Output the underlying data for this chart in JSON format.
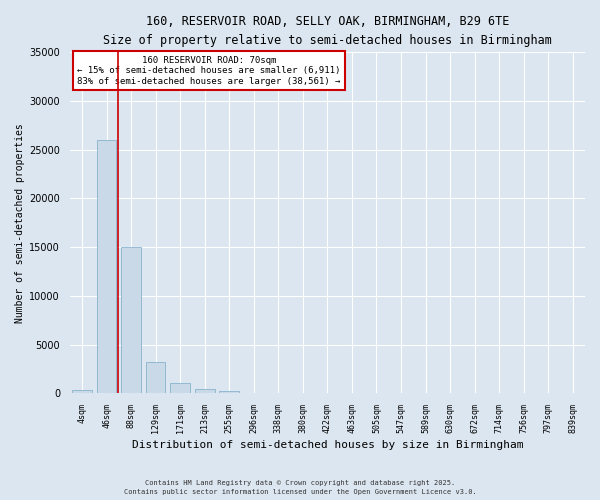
{
  "title1": "160, RESERVOIR ROAD, SELLY OAK, BIRMINGHAM, B29 6TE",
  "title2": "Size of property relative to semi-detached houses in Birmingham",
  "xlabel": "Distribution of semi-detached houses by size in Birmingham",
  "ylabel": "Number of semi-detached properties",
  "annotation_title": "160 RESERVOIR ROAD: 70sqm",
  "annotation_line1": "← 15% of semi-detached houses are smaller (6,911)",
  "annotation_line2": "83% of semi-detached houses are larger (38,561) →",
  "footnote1": "Contains HM Land Registry data © Crown copyright and database right 2025.",
  "footnote2": "Contains public sector information licensed under the Open Government Licence v3.0.",
  "bar_labels": [
    "4sqm",
    "46sqm",
    "88sqm",
    "129sqm",
    "171sqm",
    "213sqm",
    "255sqm",
    "296sqm",
    "338sqm",
    "380sqm",
    "422sqm",
    "463sqm",
    "505sqm",
    "547sqm",
    "589sqm",
    "630sqm",
    "672sqm",
    "714sqm",
    "756sqm",
    "797sqm",
    "839sqm"
  ],
  "bar_values": [
    350,
    26000,
    15000,
    3200,
    1100,
    450,
    200,
    50,
    0,
    0,
    0,
    0,
    0,
    0,
    0,
    0,
    0,
    0,
    0,
    0,
    0
  ],
  "bar_color": "#c9d9e8",
  "bar_edge_color": "#7aaac8",
  "property_line_x": 1.45,
  "ylim": [
    0,
    35000
  ],
  "yticks": [
    0,
    5000,
    10000,
    15000,
    20000,
    25000,
    30000,
    35000
  ],
  "background_color": "#dce6f0",
  "plot_bg_color": "#dce6f0",
  "grid_color": "#ffffff",
  "title_fontsize": 9.5,
  "subtitle_fontsize": 8.5,
  "annotation_box_color": "#ffffff",
  "annotation_box_edge": "#cc0000",
  "red_line_color": "#cc0000"
}
